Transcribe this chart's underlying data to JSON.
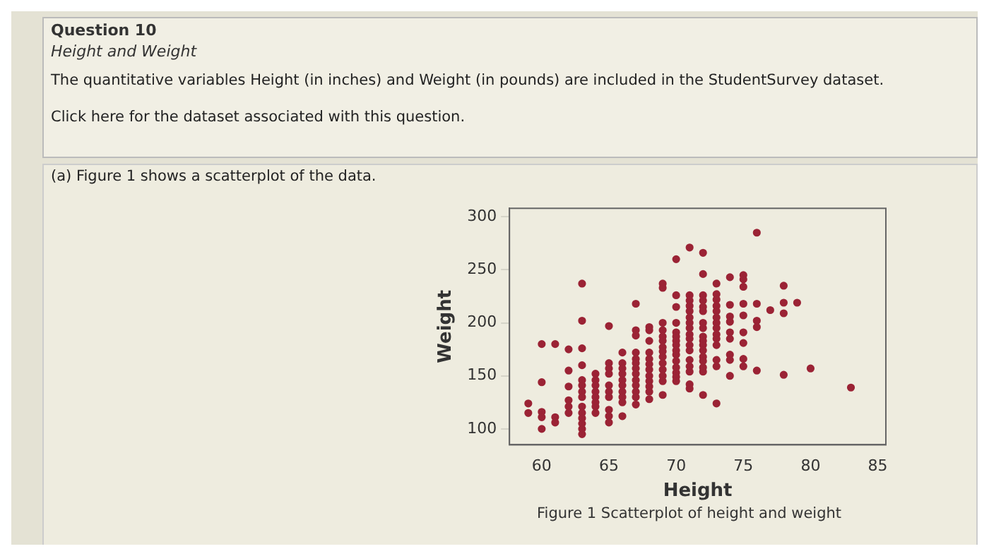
{
  "chart_data": {
    "type": "scatter",
    "title": "Question 10",
    "subtitle": "Height and Weight",
    "annotations": [
      "The quantitative variables Height (in inches) and Weight (in pounds) are included in the StudentSurvey dataset.",
      "Click here for the dataset associated with this question.",
      "(a) Figure 1 shows a scatterplot of the data.",
      "Figure 1 Scatterplot of height and weight"
    ],
    "xlabel": "Height",
    "ylabel": "Weight",
    "color": "#9b2335",
    "marker": "circle",
    "grid": false,
    "legend": false,
    "xlim": [
      57.6,
      85.6
    ],
    "ylim": [
      85,
      308
    ],
    "xticks": [
      60,
      65,
      70,
      75,
      80,
      85
    ],
    "yticks": [
      100,
      150,
      200,
      250,
      300
    ],
    "x": [
      59,
      59,
      60,
      60,
      60,
      60,
      60,
      61,
      61,
      61,
      62,
      62,
      62,
      62,
      62,
      62,
      63,
      63,
      63,
      63,
      63,
      63,
      63,
      63,
      63,
      63,
      63,
      63,
      63,
      63,
      64,
      64,
      64,
      64,
      64,
      64,
      64,
      64,
      65,
      65,
      65,
      65,
      65,
      65,
      65,
      65,
      65,
      65,
      66,
      66,
      66,
      66,
      66,
      66,
      66,
      66,
      66,
      66,
      67,
      67,
      67,
      67,
      67,
      67,
      67,
      67,
      67,
      67,
      67,
      67,
      67,
      68,
      68,
      68,
      68,
      68,
      68,
      68,
      68,
      68,
      68,
      68,
      68,
      69,
      69,
      69,
      69,
      69,
      69,
      69,
      69,
      69,
      69,
      69,
      69,
      69,
      69,
      70,
      70,
      70,
      70,
      70,
      70,
      70,
      70,
      70,
      70,
      70,
      70,
      70,
      70,
      70,
      71,
      71,
      71,
      71,
      71,
      71,
      71,
      71,
      71,
      71,
      71,
      71,
      71,
      71,
      71,
      71,
      71,
      72,
      72,
      72,
      72,
      72,
      72,
      72,
      72,
      72,
      72,
      72,
      72,
      72,
      72,
      72,
      72,
      72,
      73,
      73,
      73,
      73,
      73,
      73,
      73,
      73,
      73,
      73,
      73,
      73,
      73,
      73,
      74,
      74,
      74,
      74,
      74,
      74,
      74,
      74,
      74,
      75,
      75,
      75,
      75,
      75,
      75,
      75,
      75,
      75,
      76,
      76,
      76,
      76,
      76,
      77,
      78,
      78,
      78,
      78,
      79,
      80,
      83
    ],
    "values": [
      124,
      115,
      180,
      144,
      116,
      111,
      100,
      180,
      111,
      106,
      175,
      155,
      140,
      127,
      121,
      115,
      237,
      202,
      176,
      160,
      146,
      141,
      135,
      130,
      121,
      115,
      110,
      105,
      100,
      95,
      152,
      146,
      141,
      135,
      130,
      125,
      121,
      115,
      197,
      162,
      157,
      152,
      141,
      135,
      130,
      118,
      112,
      106,
      172,
      162,
      157,
      152,
      146,
      141,
      135,
      130,
      125,
      112,
      218,
      193,
      188,
      172,
      166,
      162,
      157,
      152,
      146,
      141,
      135,
      130,
      123,
      196,
      193,
      183,
      172,
      166,
      161,
      156,
      150,
      145,
      140,
      135,
      128,
      237,
      233,
      200,
      193,
      187,
      183,
      177,
      173,
      168,
      162,
      156,
      150,
      145,
      132,
      260,
      226,
      215,
      200,
      191,
      187,
      183,
      179,
      174,
      170,
      164,
      158,
      153,
      149,
      145,
      271,
      226,
      221,
      216,
      211,
      205,
      200,
      195,
      189,
      185,
      179,
      174,
      165,
      159,
      154,
      142,
      138,
      266,
      246,
      226,
      221,
      215,
      211,
      200,
      195,
      187,
      183,
      179,
      174,
      168,
      164,
      158,
      154,
      132,
      237,
      227,
      222,
      216,
      211,
      205,
      200,
      195,
      189,
      185,
      179,
      165,
      159,
      124,
      243,
      217,
      206,
      201,
      191,
      185,
      170,
      165,
      150,
      245,
      241,
      234,
      218,
      207,
      191,
      181,
      166,
      159,
      285,
      218,
      202,
      196,
      155,
      212,
      235,
      219,
      209,
      151,
      219,
      157,
      139
    ]
  }
}
